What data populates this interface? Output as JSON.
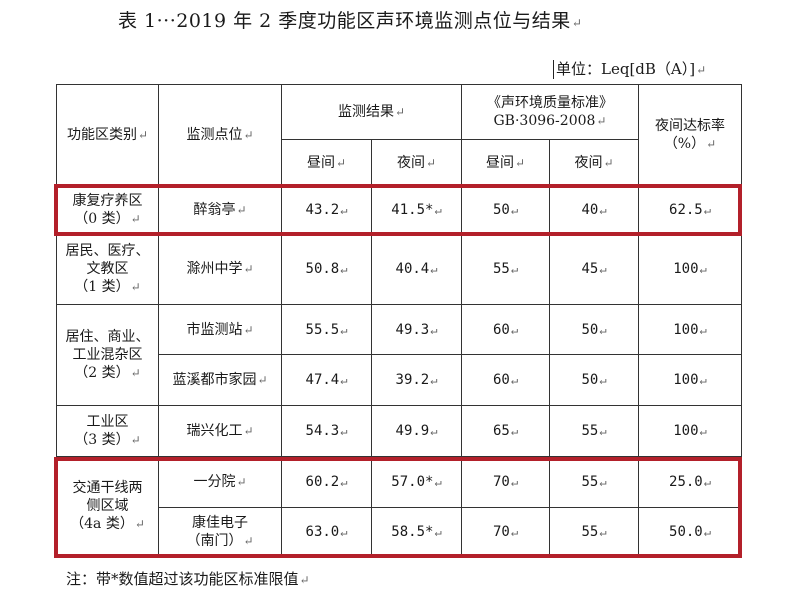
{
  "title": "表 1···2019 年 2 季度功能区声环境监测点位与结果",
  "unit": "单位：Leq[dB（A）]",
  "headers": {
    "zone": "功能区类别",
    "site": "监测点位",
    "result": "监测结果",
    "standard_line1": "《声环境质量标准》",
    "standard_line2": "GB·3096-2008",
    "rate_line1": "夜间达标率",
    "rate_line2": "（%）",
    "day1": "昼间",
    "night1": "夜间",
    "day2": "昼间",
    "night2": "夜间"
  },
  "zones": [
    {
      "label_lines": [
        "康复疗养区",
        "（0 类）"
      ]
    },
    {
      "label_lines": [
        "居民、医疗、",
        "文教区",
        "（1 类）"
      ]
    },
    {
      "label_lines": [
        "居住、商业、",
        "工业混杂区",
        "（2 类）"
      ]
    },
    {
      "label_lines": [
        "工业区",
        "（3 类）"
      ]
    },
    {
      "label_lines": [
        "交通干线两",
        "侧区域",
        "（4a 类）"
      ]
    }
  ],
  "rows": [
    {
      "site": "醉翁亭",
      "day": "43.2",
      "night": "41.5*",
      "std_day": "50",
      "std_night": "40",
      "rate": "62.5"
    },
    {
      "site": "滁州中学",
      "day": "50.8",
      "night": "40.4",
      "std_day": "55",
      "std_night": "45",
      "rate": "100"
    },
    {
      "site": "市监测站",
      "day": "55.5",
      "night": "49.3",
      "std_day": "60",
      "std_night": "50",
      "rate": "100"
    },
    {
      "site": "蓝溪都市家园",
      "day": "47.4",
      "night": "39.2",
      "std_day": "60",
      "std_night": "50",
      "rate": "100"
    },
    {
      "site": "瑞兴化工",
      "day": "54.3",
      "night": "49.9",
      "std_day": "65",
      "std_night": "55",
      "rate": "100"
    },
    {
      "site": "一分院",
      "day": "60.2",
      "night": "57.0*",
      "std_day": "70",
      "std_night": "55",
      "rate": "25.0"
    },
    {
      "site_lines": [
        "康佳电子",
        "（南门）"
      ],
      "day": "63.0",
      "night": "58.5*",
      "std_day": "70",
      "std_night": "55",
      "rate": "50.0"
    }
  ],
  "note": "注：带*数值超过该功能区标准限值",
  "colors": {
    "highlight": "#b3202a",
    "paragraph_mark": "#666666"
  }
}
